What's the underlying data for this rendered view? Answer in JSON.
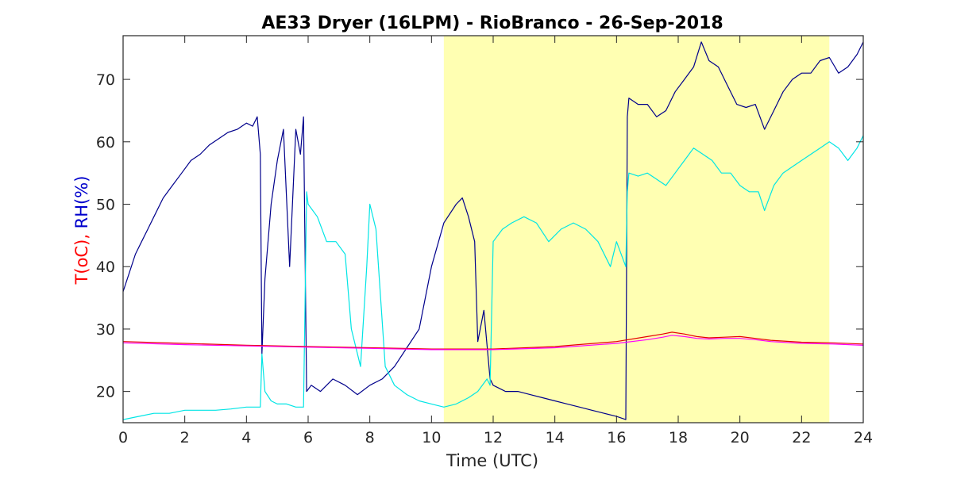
{
  "chart_data": {
    "type": "line",
    "title": "AE33 Dryer (16LPM)  - RioBranco - 26-Sep-2018",
    "xlabel": "Time (UTC)",
    "ylabel_parts": [
      {
        "text": "T(oC),",
        "color": "#ff0000"
      },
      {
        "text": " RH(%)",
        "color": "#0000cc"
      }
    ],
    "xlim": [
      0,
      24
    ],
    "ylim": [
      15,
      77
    ],
    "xticks": [
      0,
      2,
      4,
      6,
      8,
      10,
      12,
      14,
      16,
      18,
      20,
      22,
      24
    ],
    "yticks": [
      20,
      30,
      40,
      50,
      60,
      70
    ],
    "grid": false,
    "shaded_region": {
      "x": [
        10.4,
        22.9
      ],
      "color": "#ffffb2"
    },
    "series": [
      {
        "color": "#00008b",
        "x": [
          0,
          0.2,
          0.4,
          0.6,
          0.8,
          1.0,
          1.3,
          1.6,
          1.9,
          2.2,
          2.5,
          2.8,
          3.1,
          3.4,
          3.7,
          4.0,
          4.2,
          4.35,
          4.45,
          4.5,
          4.6,
          4.8,
          5.0,
          5.2,
          5.4,
          5.6,
          5.75,
          5.85,
          5.95,
          6.1,
          6.4,
          6.8,
          7.2,
          7.6,
          8.0,
          8.4,
          8.8,
          9.2,
          9.6,
          10.0,
          10.4,
          10.8,
          11.0,
          11.2,
          11.4,
          11.5,
          11.7,
          11.9,
          12.0,
          12.4,
          12.8,
          13.2,
          13.6,
          14.0,
          14.4,
          14.8,
          15.2,
          15.6,
          16.0,
          16.3,
          16.35,
          16.4,
          16.7,
          17.0,
          17.3,
          17.6,
          17.9,
          18.2,
          18.5,
          18.75,
          19.0,
          19.3,
          19.6,
          19.9,
          20.2,
          20.5,
          20.8,
          21.1,
          21.4,
          21.7,
          22.0,
          22.3,
          22.6,
          22.9,
          23.2,
          23.5,
          23.8,
          24.0
        ],
        "y": [
          36,
          39,
          42,
          44,
          46,
          48,
          51,
          53,
          55,
          57,
          58,
          59.5,
          60.5,
          61.5,
          62,
          63,
          62.5,
          64,
          58,
          26,
          38,
          50,
          57,
          62,
          40,
          62,
          58,
          64,
          20,
          21,
          20,
          22,
          21,
          19.5,
          21,
          22,
          24,
          27,
          30,
          40,
          47,
          50,
          51,
          48,
          44,
          28,
          33,
          22,
          21,
          20,
          20,
          19.5,
          19,
          18.5,
          18,
          17.5,
          17,
          16.5,
          16,
          15.5,
          64,
          67,
          66,
          66,
          64,
          65,
          68,
          70,
          72,
          76,
          73,
          72,
          69,
          66,
          65.5,
          66,
          62,
          65,
          68,
          70,
          71,
          71,
          73,
          73.5,
          71,
          72,
          74,
          76
        ]
      },
      {
        "color": "#00e5e5",
        "x": [
          0,
          0.5,
          1.0,
          1.5,
          2.0,
          2.5,
          3.0,
          3.5,
          4.0,
          4.45,
          4.5,
          4.6,
          4.8,
          5.0,
          5.3,
          5.6,
          5.85,
          5.95,
          6.0,
          6.3,
          6.6,
          6.9,
          7.2,
          7.4,
          7.5,
          7.7,
          7.9,
          8.0,
          8.2,
          8.5,
          8.8,
          9.2,
          9.6,
          10.0,
          10.4,
          10.8,
          11.2,
          11.5,
          11.8,
          11.9,
          12.0,
          12.3,
          12.6,
          13.0,
          13.4,
          13.8,
          14.2,
          14.6,
          15.0,
          15.4,
          15.8,
          16.0,
          16.3,
          16.35,
          16.4,
          16.7,
          17.0,
          17.3,
          17.6,
          17.9,
          18.2,
          18.5,
          18.8,
          19.1,
          19.4,
          19.7,
          20.0,
          20.3,
          20.6,
          20.8,
          21.1,
          21.4,
          21.7,
          22.0,
          22.3,
          22.6,
          22.9,
          23.2,
          23.5,
          23.8,
          24.0
        ],
        "y": [
          15.5,
          16,
          16.5,
          16.5,
          17,
          17,
          17,
          17.2,
          17.5,
          17.5,
          26,
          20,
          18.5,
          18,
          18,
          17.5,
          17.5,
          52,
          50,
          48,
          44,
          44,
          42,
          30,
          28,
          24,
          40,
          50,
          46,
          24,
          21,
          19.5,
          18.5,
          18,
          17.5,
          18,
          19,
          20,
          22,
          21,
          44,
          46,
          47,
          48,
          47,
          44,
          46,
          47,
          46,
          44,
          40,
          44,
          40,
          52,
          55,
          54.5,
          55,
          54,
          53,
          55,
          57,
          59,
          58,
          57,
          55,
          55,
          53,
          52,
          52,
          49,
          53,
          55,
          56,
          57,
          58,
          59,
          60,
          59,
          57,
          59,
          61
        ]
      },
      {
        "color": "#e60000",
        "x": [
          0,
          2,
          4,
          6,
          8,
          10,
          12,
          14,
          16,
          17,
          17.5,
          17.8,
          18.2,
          18.6,
          19,
          19.5,
          20,
          20.5,
          21,
          22,
          23,
          24
        ],
        "y": [
          28,
          27.7,
          27.4,
          27.2,
          27,
          26.8,
          26.8,
          27.2,
          28,
          28.8,
          29.2,
          29.5,
          29.2,
          28.8,
          28.6,
          28.7,
          28.8,
          28.5,
          28.2,
          27.9,
          27.8,
          27.6
        ]
      },
      {
        "color": "#ff00ff",
        "x": [
          0,
          2,
          4,
          6,
          8,
          10,
          12,
          14,
          16,
          17,
          17.5,
          17.8,
          18.2,
          18.6,
          19,
          19.5,
          20,
          20.5,
          21,
          22,
          23,
          24
        ],
        "y": [
          27.8,
          27.5,
          27.3,
          27.1,
          26.9,
          26.7,
          26.7,
          27.0,
          27.7,
          28.3,
          28.7,
          29.0,
          28.8,
          28.5,
          28.4,
          28.5,
          28.5,
          28.3,
          28.0,
          27.7,
          27.6,
          27.4
        ]
      }
    ]
  }
}
